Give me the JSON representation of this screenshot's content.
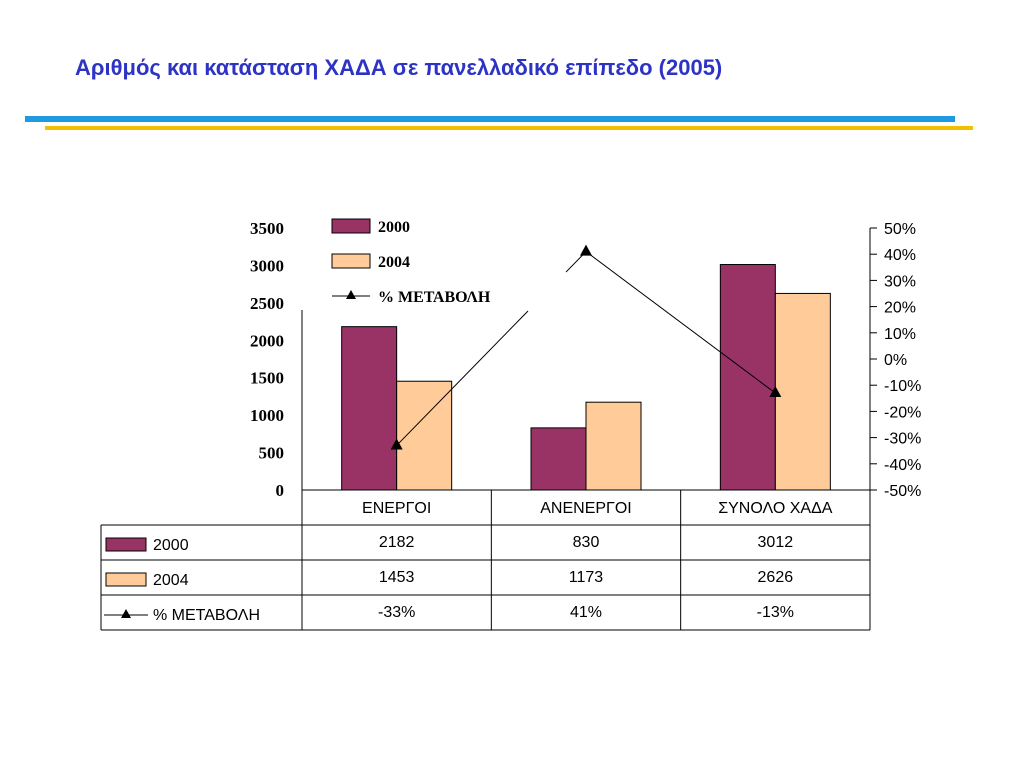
{
  "title": "Αριθμός και κατάσταση ΧΑΔΑ σε πανελλαδικό επίπεδο (2005)",
  "colors": {
    "title": "#2d33c4",
    "rule_blue": "#1e9ae0",
    "rule_yellow": "#f2c000",
    "bar_2000": "#993366",
    "bar_2004": "#ffcc99"
  },
  "chart_data": {
    "type": "bar",
    "categories": [
      "ΕΝΕΡΓΟΙ",
      "ΑΝΕΝΕΡΓΟΙ",
      "ΣΥΝΟΛΟ ΧΑΔΑ"
    ],
    "series": [
      {
        "name": "2000",
        "values": [
          2182,
          830,
          3012
        ],
        "labels": [
          "2182",
          "830",
          "3012"
        ],
        "kind": "bar",
        "color": "#993366"
      },
      {
        "name": "2004",
        "values": [
          1453,
          1173,
          2626
        ],
        "labels": [
          "1453",
          "1173",
          "2626"
        ],
        "kind": "bar",
        "color": "#ffcc99"
      },
      {
        "name": "% ΜΕΤΑΒΟΛΗ",
        "values": [
          -33,
          41,
          -13
        ],
        "labels": [
          "-33%",
          "41%",
          "-13%"
        ],
        "kind": "line",
        "axis": "right"
      }
    ],
    "left_axis": {
      "ylim": [
        0,
        3500
      ],
      "ticks": [
        "0",
        "500",
        "1000",
        "1500",
        "2000",
        "2500",
        "3000",
        "3500"
      ]
    },
    "right_axis": {
      "ylim": [
        -50,
        50
      ],
      "ticks": [
        "50%",
        "40%",
        "30%",
        "20%",
        "10%",
        "0%",
        "-10%",
        "-20%",
        "-30%",
        "-40%",
        "-50%"
      ]
    },
    "legend": {
      "placement": "top-left",
      "entries": [
        "2000",
        "2004",
        "%  ΜΕΤΑΒΟΛΗ"
      ]
    },
    "data_table": true,
    "grid": false
  }
}
